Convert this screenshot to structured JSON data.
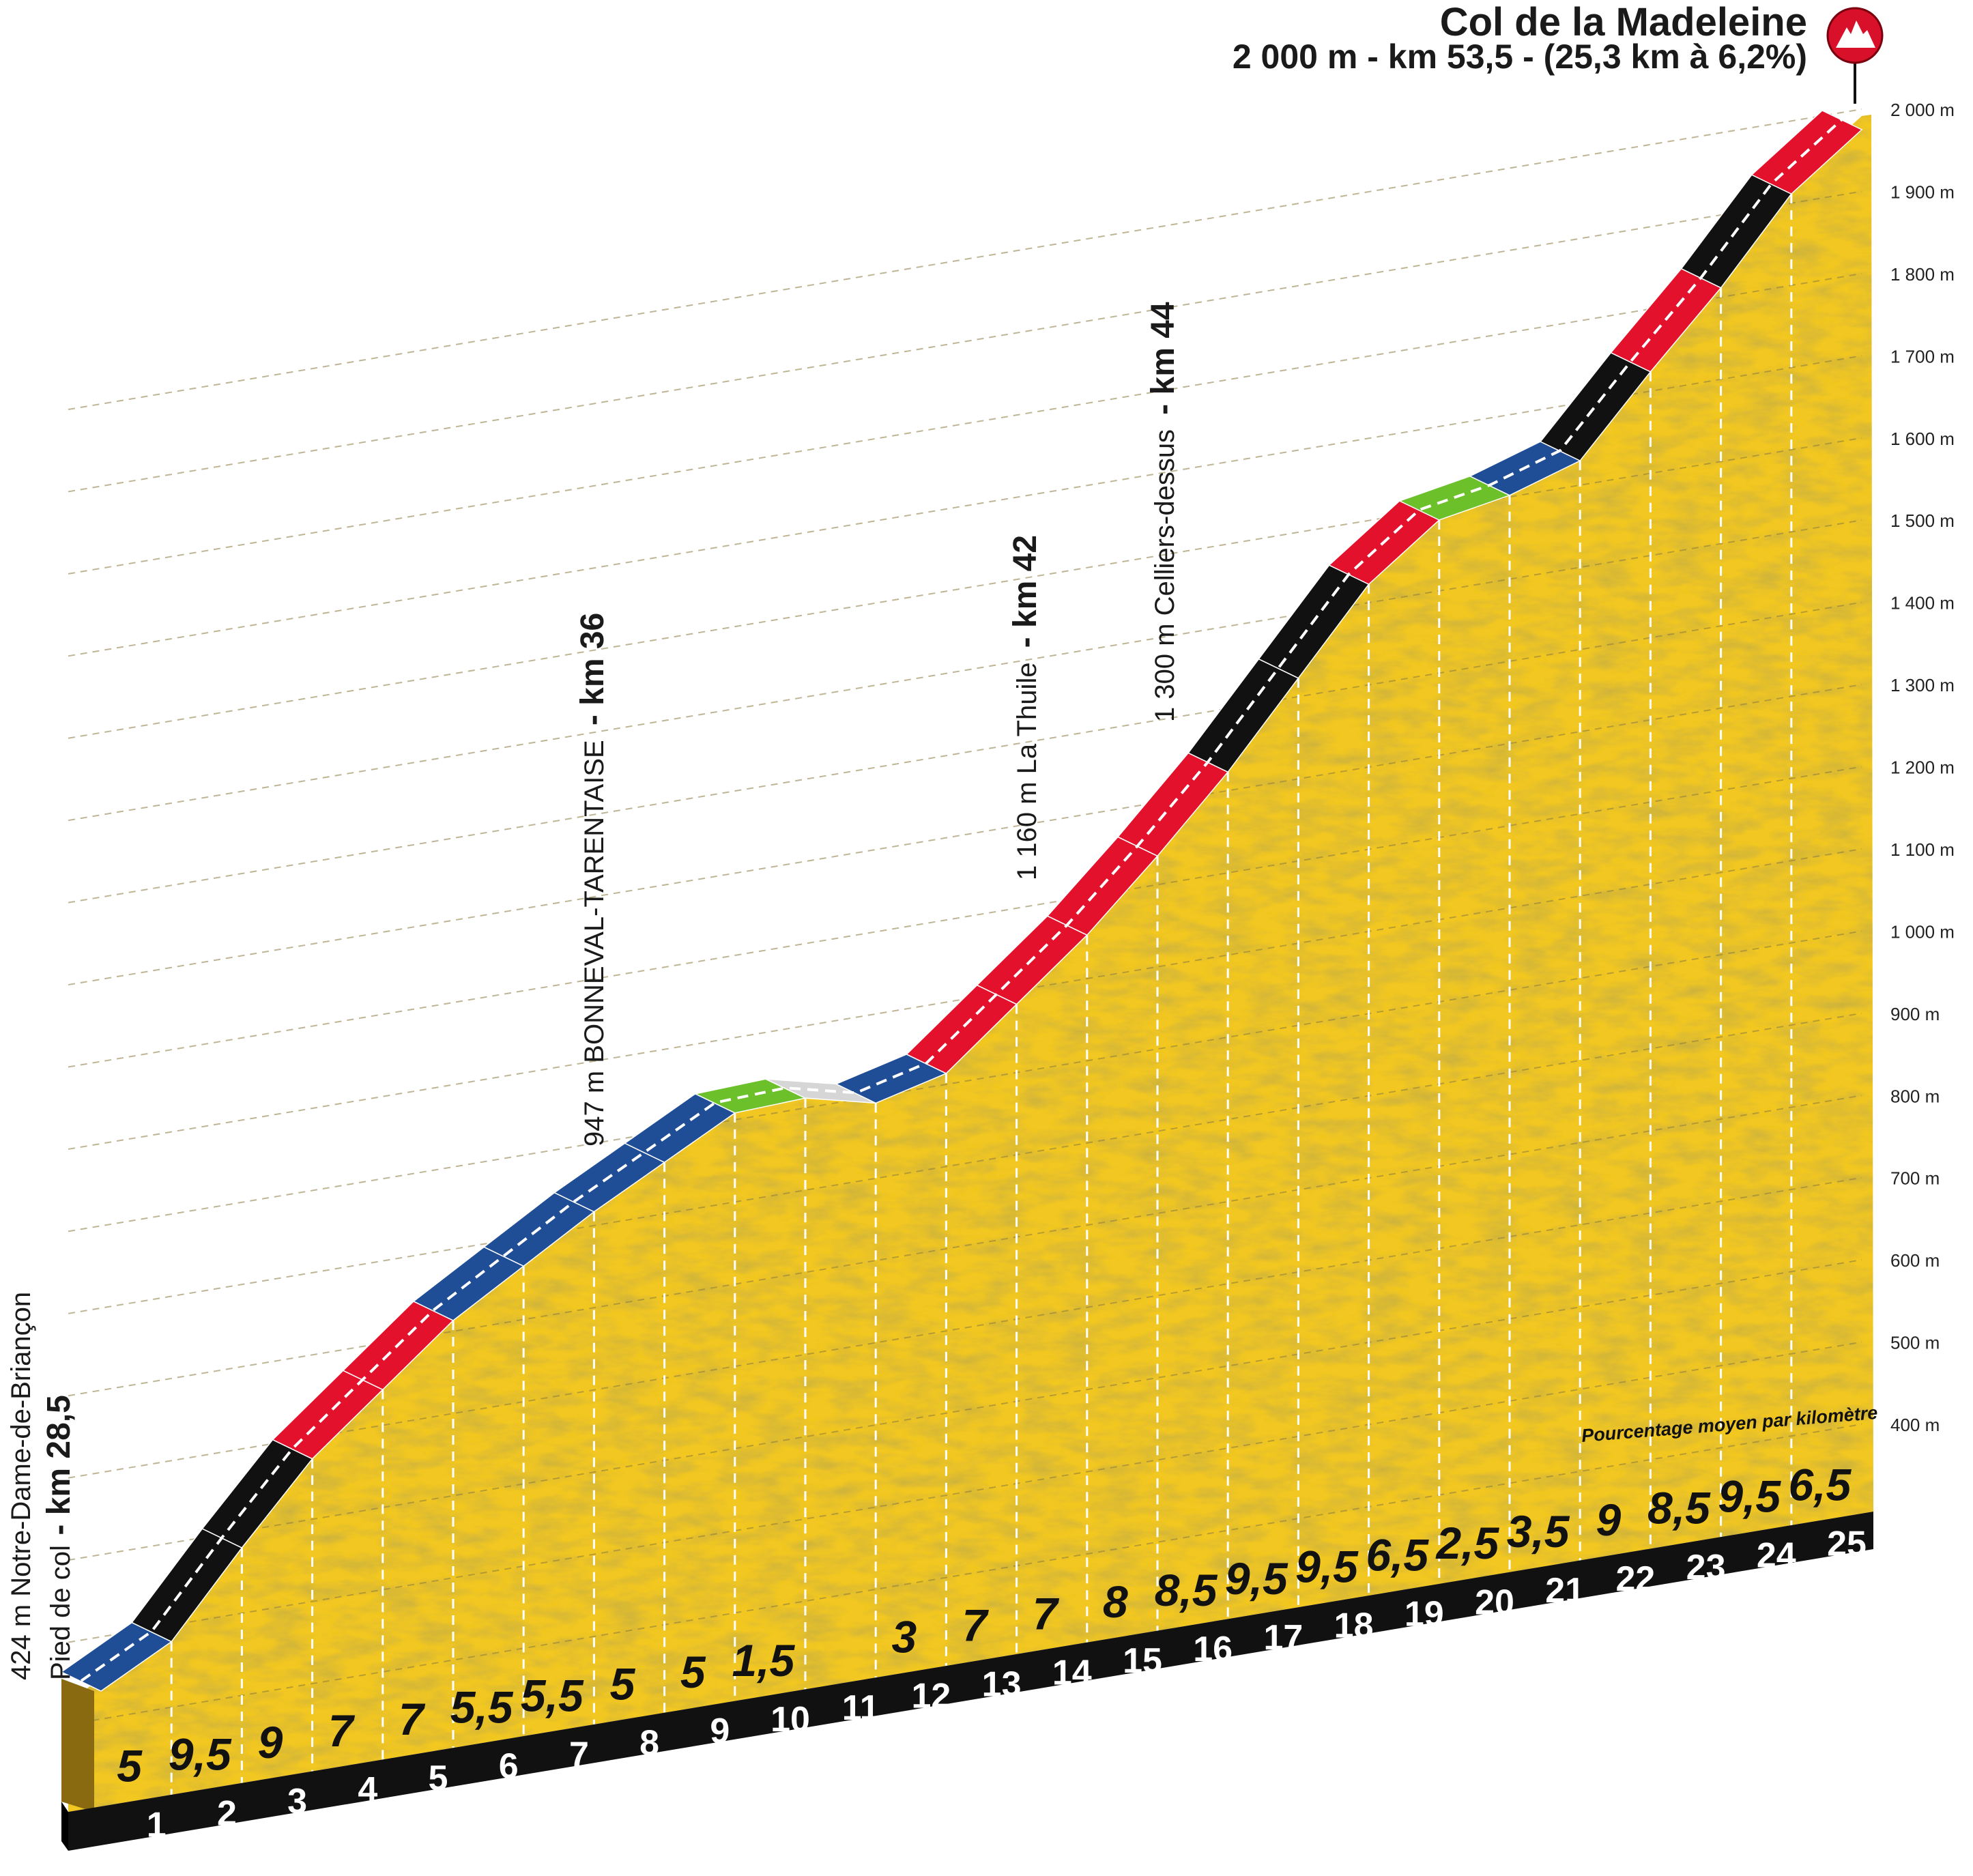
{
  "chart_data": {
    "type": "area",
    "title": "Col de la Madeleine",
    "subtitle": "2 000 m - km 53,5 - (25,3 km à 6,2%)",
    "summit_icon": "mountain-icon",
    "note": "Pourcentage moyen par kilomètre",
    "y_ticks": [
      "400 m",
      "500 m",
      "600 m",
      "700 m",
      "800 m",
      "900 m",
      "1 000 m",
      "1 100 m",
      "1 200 m",
      "1 300 m",
      "1 400 m",
      "1 500 m",
      "1 600 m",
      "1 700 m",
      "1 800 m",
      "1 900 m",
      "2 000 m"
    ],
    "ylim": [
      300,
      2000
    ],
    "x_ticks": [
      "1",
      "2",
      "3",
      "4",
      "5",
      "6",
      "7",
      "8",
      "9",
      "10",
      "11",
      "12",
      "13",
      "14",
      "15",
      "16",
      "17",
      "18",
      "19",
      "20",
      "21",
      "22",
      "23",
      "24",
      "25"
    ],
    "segments": [
      {
        "pct": "5",
        "grade": 5,
        "color": "#1f4e96"
      },
      {
        "pct": "9,5",
        "grade": 9.5,
        "color": "#111111"
      },
      {
        "pct": "9",
        "grade": 9,
        "color": "#111111"
      },
      {
        "pct": "7",
        "grade": 7,
        "color": "#e3112b"
      },
      {
        "pct": "7",
        "grade": 7,
        "color": "#e3112b"
      },
      {
        "pct": "5,5",
        "grade": 5.5,
        "color": "#1f4e96"
      },
      {
        "pct": "5,5",
        "grade": 5.5,
        "color": "#1f4e96"
      },
      {
        "pct": "5",
        "grade": 5,
        "color": "#1f4e96"
      },
      {
        "pct": "5",
        "grade": 5,
        "color": "#1f4e96"
      },
      {
        "pct": "1,5",
        "grade": 1.5,
        "color": "#6cc12a"
      },
      {
        "pct": "",
        "grade": -0.5,
        "color": "#d6d6d6"
      },
      {
        "pct": "3",
        "grade": 3,
        "color": "#1f4e96"
      },
      {
        "pct": "7",
        "grade": 7,
        "color": "#e3112b"
      },
      {
        "pct": "7",
        "grade": 7,
        "color": "#e3112b"
      },
      {
        "pct": "8",
        "grade": 8,
        "color": "#e3112b"
      },
      {
        "pct": "8,5",
        "grade": 8.5,
        "color": "#e3112b"
      },
      {
        "pct": "9,5",
        "grade": 9.5,
        "color": "#111111"
      },
      {
        "pct": "9,5",
        "grade": 9.5,
        "color": "#111111"
      },
      {
        "pct": "6,5",
        "grade": 6.5,
        "color": "#e3112b"
      },
      {
        "pct": "2,5",
        "grade": 2.5,
        "color": "#6cc12a"
      },
      {
        "pct": "3,5",
        "grade": 3.5,
        "color": "#1f4e96"
      },
      {
        "pct": "9",
        "grade": 9,
        "color": "#111111"
      },
      {
        "pct": "8,5",
        "grade": 8.5,
        "color": "#e3112b"
      },
      {
        "pct": "9,5",
        "grade": 9.5,
        "color": "#111111"
      },
      {
        "pct": "6,5",
        "grade": 6.5,
        "color": "#e3112b"
      }
    ],
    "start": {
      "alt_label": "424 m Notre-Dame-de-Briançon",
      "label": "Pied de col",
      "km": "- km 28,5",
      "altitude": 424
    },
    "waypoints": [
      {
        "text": "947 m BONNEVAL-TARENTAISE",
        "km": "- km 36",
        "at_km": 7.5,
        "altitude": 947
      },
      {
        "text": "1 160 m La Thuile",
        "km": "- km 42",
        "at_km": 13.5,
        "altitude": 1160
      },
      {
        "text": "1 300 m Celliers-dessus",
        "km": "- km 44",
        "at_km": 15.5,
        "altitude": 1300
      }
    ],
    "colors": {
      "terrain": "#f2c724",
      "terrain_edge": "#c59a10",
      "base_front": "#8a6a10",
      "ground": "#111111",
      "summit_badge": "#d8102a"
    }
  }
}
